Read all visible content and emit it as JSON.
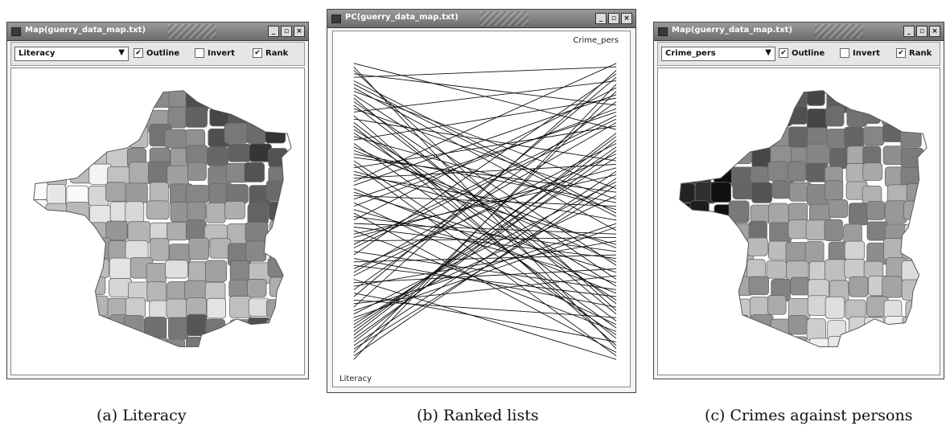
{
  "windows": {
    "a": {
      "title": "Map(guerry_data_map.txt)",
      "variable": "Literacy",
      "outline": {
        "label": "Outline",
        "checked": true
      },
      "invert": {
        "label": "Invert",
        "checked": false
      },
      "rank": {
        "label": "Rank",
        "checked": true
      }
    },
    "b": {
      "title": "PC(guerry_data_map.txt)",
      "axis_top": "Crime_pers",
      "axis_bottom": "Literacy"
    },
    "c": {
      "title": "Map(guerry_data_map.txt)",
      "variable": "Crime_pers",
      "outline": {
        "label": "Outline",
        "checked": true
      },
      "invert": {
        "label": "Invert",
        "checked": false
      },
      "rank": {
        "label": "Rank",
        "checked": true
      }
    }
  },
  "captions": {
    "a": "(a) Literacy",
    "b": "(b) Ranked lists",
    "c": "(c) Crimes against persons"
  },
  "icons": {
    "window_menu": "window-menu-icon",
    "minimize": "minimize-icon",
    "maximize": "maximize-icon",
    "close": "close-icon",
    "dropdown": "chevron-down-icon",
    "checkmark": "checkmark-icon"
  }
}
